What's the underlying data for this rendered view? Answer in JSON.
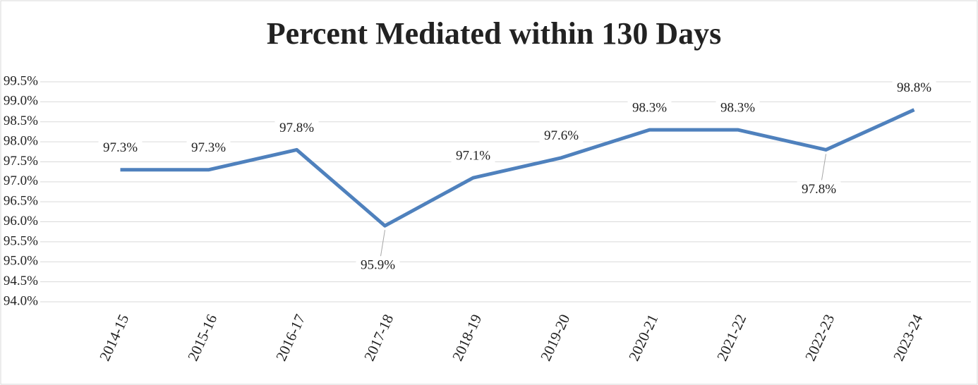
{
  "chart_data": {
    "type": "line",
    "title": "Percent Mediated within 130 Days",
    "categories": [
      "2014-15",
      "2015-16",
      "2016-17",
      "2017-18",
      "2018-19",
      "2019-20",
      "2020-21",
      "2021-22",
      "2022-23",
      "2023-24"
    ],
    "series": [
      {
        "name": "Percent Mediated",
        "color": "#4f81bd",
        "values": [
          97.3,
          97.3,
          97.8,
          95.9,
          97.1,
          97.6,
          98.3,
          98.3,
          97.8,
          98.8
        ],
        "value_labels": [
          "97.3%",
          "97.3%",
          "97.8%",
          "95.9%",
          "97.1%",
          "97.6%",
          "98.3%",
          "98.3%",
          "97.8%",
          "98.8%"
        ]
      }
    ],
    "ylim": [
      94,
      99.5
    ],
    "yticks": [
      {
        "value": 94,
        "label": "94.0%"
      },
      {
        "value": 94.5,
        "label": "94.5%"
      },
      {
        "value": 95,
        "label": "95.0%"
      },
      {
        "value": 95.5,
        "label": "95.5%"
      },
      {
        "value": 96,
        "label": "96.0%"
      },
      {
        "value": 96.5,
        "label": "96.5%"
      },
      {
        "value": 97,
        "label": "97.0%"
      },
      {
        "value": 97.5,
        "label": "97.5%"
      },
      {
        "value": 98,
        "label": "98.0%"
      },
      {
        "value": 98.5,
        "label": "98.5%"
      },
      {
        "value": 99,
        "label": "99.0%"
      },
      {
        "value": 99.5,
        "label": "99.5%"
      }
    ],
    "grid": true
  }
}
